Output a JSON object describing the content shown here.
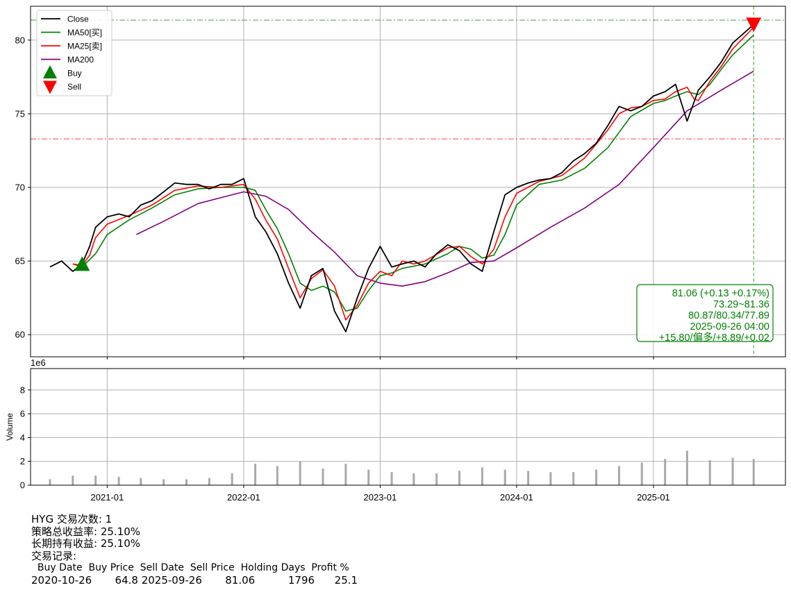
{
  "chart_data": [
    {
      "type": "line",
      "panel": "price",
      "ylim": [
        58.5,
        82.3
      ],
      "yticks": [
        60,
        65,
        70,
        75,
        80
      ],
      "grid": true,
      "legend_placement": "top-left",
      "legend": [
        {
          "label": "Close",
          "color": "#000000",
          "kind": "line"
        },
        {
          "label": "MA50[买]",
          "color": "#008000",
          "kind": "line"
        },
        {
          "label": "MA25[卖]",
          "color": "#ff0000",
          "kind": "line"
        },
        {
          "label": "MA200",
          "color": "#800080",
          "kind": "line"
        },
        {
          "label": "Buy",
          "color": "#008000",
          "kind": "triangle-up"
        },
        {
          "label": "Sell",
          "color": "#ff0000",
          "kind": "triangle-down"
        }
      ],
      "hlines": [
        {
          "y": 81.36,
          "color": "#008000"
        },
        {
          "y": 73.29,
          "color": "#ff0000"
        }
      ],
      "vline": {
        "x": "2025-09-26",
        "color": "#008000"
      },
      "series": [
        {
          "name": "Close",
          "color": "#000000",
          "x": [
            "2020-08-01",
            "2020-09-01",
            "2020-10-01",
            "2020-10-26",
            "2020-11-15",
            "2020-12-01",
            "2021-01-01",
            "2021-02-01",
            "2021-03-01",
            "2021-04-01",
            "2021-05-01",
            "2021-06-01",
            "2021-07-01",
            "2021-08-01",
            "2021-09-01",
            "2021-10-01",
            "2021-11-01",
            "2021-12-01",
            "2022-01-01",
            "2022-02-01",
            "2022-03-01",
            "2022-04-01",
            "2022-05-01",
            "2022-06-01",
            "2022-07-01",
            "2022-08-01",
            "2022-09-01",
            "2022-10-01",
            "2022-11-01",
            "2022-12-01",
            "2023-01-01",
            "2023-02-01",
            "2023-03-01",
            "2023-04-01",
            "2023-05-01",
            "2023-06-01",
            "2023-07-01",
            "2023-08-01",
            "2023-09-01",
            "2023-10-01",
            "2023-11-01",
            "2023-12-01",
            "2024-01-01",
            "2024-02-01",
            "2024-03-01",
            "2024-04-01",
            "2024-05-01",
            "2024-06-01",
            "2024-07-01",
            "2024-08-01",
            "2024-09-01",
            "2024-10-01",
            "2024-11-01",
            "2024-12-01",
            "2025-01-01",
            "2025-02-01",
            "2025-03-01",
            "2025-04-01",
            "2025-05-01",
            "2025-06-01",
            "2025-07-01",
            "2025-08-01",
            "2025-09-26"
          ],
          "y": [
            64.6,
            65.0,
            64.3,
            64.8,
            66.0,
            67.3,
            68.0,
            68.2,
            68.0,
            68.8,
            69.1,
            69.7,
            70.3,
            70.2,
            70.2,
            69.9,
            70.2,
            70.2,
            70.6,
            68.0,
            67.0,
            65.5,
            63.5,
            61.8,
            64.0,
            64.5,
            61.6,
            60.2,
            62.5,
            64.5,
            66.0,
            64.6,
            64.8,
            65.0,
            64.6,
            65.5,
            66.1,
            65.7,
            64.8,
            64.3,
            67.0,
            69.5,
            70.0,
            70.3,
            70.5,
            70.6,
            71.0,
            71.8,
            72.3,
            73.0,
            74.2,
            75.5,
            75.2,
            75.5,
            76.2,
            76.5,
            77.0,
            74.5,
            76.6,
            77.5,
            78.5,
            79.8,
            81.06
          ]
        },
        {
          "name": "MA50[买]",
          "color": "#008000",
          "x": [
            "2020-10-01",
            "2020-10-26",
            "2020-12-01",
            "2021-01-01",
            "2021-03-01",
            "2021-05-01",
            "2021-07-01",
            "2021-09-01",
            "2021-11-01",
            "2022-01-01",
            "2022-02-01",
            "2022-03-01",
            "2022-04-01",
            "2022-05-01",
            "2022-06-01",
            "2022-07-01",
            "2022-08-01",
            "2022-09-01",
            "2022-10-01",
            "2022-11-01",
            "2022-12-01",
            "2023-01-01",
            "2023-02-01",
            "2023-03-01",
            "2023-05-01",
            "2023-07-01",
            "2023-08-01",
            "2023-09-01",
            "2023-10-01",
            "2023-11-01",
            "2023-12-01",
            "2024-01-01",
            "2024-03-01",
            "2024-05-01",
            "2024-07-01",
            "2024-09-01",
            "2024-11-01",
            "2025-01-01",
            "2025-02-01",
            "2025-03-01",
            "2025-04-01",
            "2025-05-01",
            "2025-06-01",
            "2025-07-01",
            "2025-08-01",
            "2025-09-26"
          ],
          "y": [
            64.8,
            64.6,
            65.5,
            66.8,
            67.8,
            68.6,
            69.5,
            69.9,
            70.0,
            70.0,
            69.8,
            68.5,
            67.2,
            65.5,
            63.5,
            63.0,
            63.3,
            62.9,
            61.6,
            61.8,
            63.0,
            64.0,
            64.2,
            64.5,
            64.8,
            65.5,
            66.0,
            65.8,
            65.2,
            65.4,
            66.8,
            68.8,
            70.2,
            70.5,
            71.3,
            72.7,
            74.8,
            75.7,
            75.9,
            76.2,
            76.5,
            76.3,
            77.0,
            78.0,
            79.0,
            80.34
          ]
        },
        {
          "name": "MA25[卖]",
          "color": "#ff0000",
          "x": [
            "2020-10-01",
            "2020-10-26",
            "2020-11-15",
            "2020-12-01",
            "2021-01-01",
            "2021-03-01",
            "2021-05-01",
            "2021-07-01",
            "2021-09-01",
            "2021-11-01",
            "2022-01-01",
            "2022-02-01",
            "2022-03-01",
            "2022-04-01",
            "2022-05-01",
            "2022-06-01",
            "2022-07-01",
            "2022-08-01",
            "2022-09-01",
            "2022-10-01",
            "2022-11-01",
            "2022-12-01",
            "2023-01-01",
            "2023-02-01",
            "2023-03-01",
            "2023-04-01",
            "2023-05-01",
            "2023-07-01",
            "2023-08-01",
            "2023-09-01",
            "2023-10-01",
            "2023-11-01",
            "2023-12-01",
            "2024-01-01",
            "2024-03-01",
            "2024-05-01",
            "2024-07-01",
            "2024-09-01",
            "2024-10-01",
            "2024-11-01",
            "2024-12-01",
            "2025-01-01",
            "2025-02-01",
            "2025-03-01",
            "2025-04-01",
            "2025-04-20",
            "2025-05-01",
            "2025-06-01",
            "2025-07-01",
            "2025-08-01",
            "2025-09-26"
          ],
          "y": [
            64.8,
            64.7,
            65.4,
            66.6,
            67.5,
            68.1,
            68.8,
            69.8,
            70.1,
            70.0,
            70.2,
            69.2,
            67.8,
            66.5,
            64.5,
            62.5,
            63.8,
            64.4,
            63.3,
            61.0,
            62.0,
            63.5,
            64.3,
            64.0,
            65.0,
            64.8,
            65.0,
            65.9,
            66.0,
            65.3,
            64.8,
            65.8,
            68.0,
            69.6,
            70.4,
            70.8,
            72.0,
            73.9,
            75.0,
            75.4,
            75.5,
            75.9,
            76.0,
            76.5,
            76.8,
            76.0,
            75.9,
            77.2,
            78.2,
            79.4,
            80.87
          ]
        },
        {
          "name": "MA200",
          "color": "#800080",
          "x": [
            "2021-03-20",
            "2021-06-01",
            "2021-09-01",
            "2021-12-01",
            "2022-01-01",
            "2022-03-01",
            "2022-05-01",
            "2022-07-01",
            "2022-09-01",
            "2022-11-01",
            "2023-01-01",
            "2023-03-01",
            "2023-05-01",
            "2023-07-01",
            "2023-09-01",
            "2023-11-01",
            "2024-01-01",
            "2024-04-01",
            "2024-07-01",
            "2024-10-01",
            "2025-01-01",
            "2025-04-01",
            "2025-07-01",
            "2025-09-26"
          ],
          "y": [
            66.8,
            67.7,
            68.9,
            69.5,
            69.7,
            69.4,
            68.5,
            67.0,
            65.6,
            64.0,
            63.5,
            63.3,
            63.6,
            64.2,
            64.9,
            65.0,
            65.9,
            67.3,
            68.6,
            70.2,
            72.7,
            75.2,
            76.6,
            77.89
          ]
        }
      ],
      "markers": [
        {
          "label": "Buy",
          "x": "2020-10-26",
          "y": 64.8,
          "color": "#008000",
          "shape": "triangle-up"
        },
        {
          "label": "Sell",
          "x": "2025-09-26",
          "y": 81.06,
          "color": "#ff0000",
          "shape": "triangle-down"
        }
      ],
      "annotation": {
        "lines": [
          "81.06 (+0.13 +0.17%)",
          "73.29~81.36",
          "80.87/80.34/77.89",
          "2025-09-26 04:00",
          "+15.80/偏多/+8.89/+0.02"
        ],
        "color": "#008000",
        "placement": "bottom-right"
      }
    },
    {
      "type": "bar",
      "panel": "volume",
      "ylabel": "Volume",
      "scale_label": "1e6",
      "ylim": [
        0,
        9.8
      ],
      "yticks": [
        0,
        2,
        4,
        6,
        8
      ],
      "xticks": [
        "2021-01",
        "2022-01",
        "2023-01",
        "2024-01",
        "2025-01"
      ],
      "grid": true,
      "color": "#a9a9a9",
      "x": [
        "2020-08-01",
        "2020-10-01",
        "2020-12-01",
        "2021-02-01",
        "2021-04-01",
        "2021-06-01",
        "2021-08-01",
        "2021-10-01",
        "2021-12-01",
        "2022-02-01",
        "2022-04-01",
        "2022-06-01",
        "2022-08-01",
        "2022-10-01",
        "2022-12-01",
        "2023-02-01",
        "2023-04-01",
        "2023-06-01",
        "2023-08-01",
        "2023-10-01",
        "2023-12-01",
        "2024-02-01",
        "2024-04-01",
        "2024-06-01",
        "2024-08-01",
        "2024-10-01",
        "2024-12-01",
        "2025-02-01",
        "2025-04-01",
        "2025-06-01",
        "2025-08-01",
        "2025-09-26"
      ],
      "values": [
        0.5,
        0.8,
        0.8,
        0.7,
        0.6,
        0.5,
        0.5,
        0.6,
        1.0,
        1.8,
        1.6,
        2.0,
        1.4,
        1.8,
        1.3,
        1.1,
        1.0,
        1.0,
        1.2,
        1.5,
        1.3,
        1.2,
        1.1,
        1.1,
        1.3,
        1.6,
        1.9,
        2.2,
        2.9,
        2.1,
        2.3,
        2.2
      ]
    }
  ],
  "footer": {
    "title": "HYG 交易次数: 1",
    "strategy": "策略总收益率: 25.10%",
    "holding": "长期持有收益: 25.10%",
    "records_title": "交易记录:",
    "table_header": "  Buy Date  Buy Price  Sell Date  Sell Price  Holding Days  Profit %",
    "table_row": "2020-10-26       64.8 2025-09-26       81.06          1796      25.1"
  }
}
